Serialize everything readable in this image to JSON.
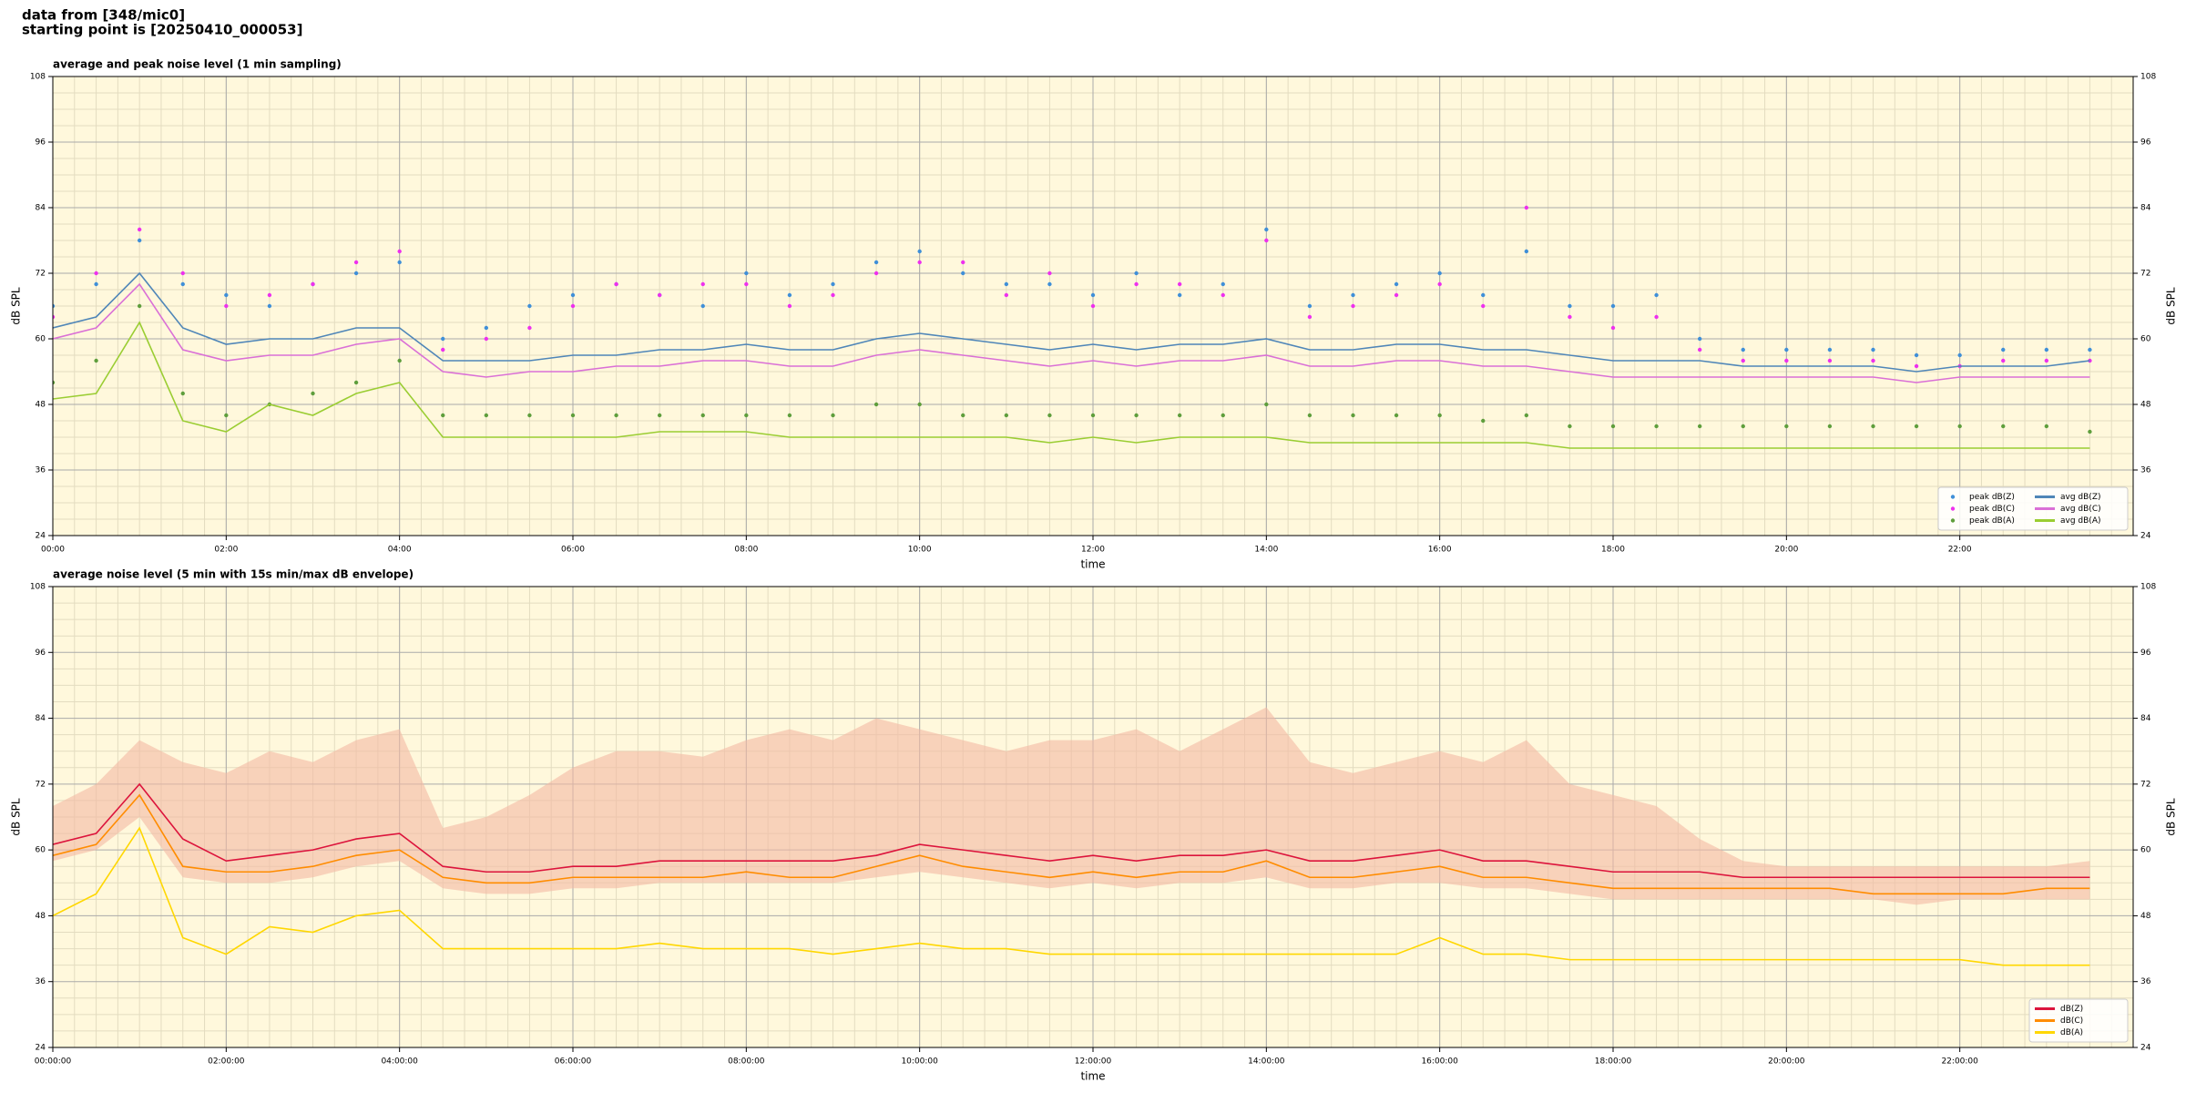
{
  "header": {
    "lines": [
      "data from [348/mic0]",
      "starting point is [20250410_000053]"
    ]
  },
  "chart_data": [
    {
      "type": "line",
      "title": "average and peak noise level (1 min sampling)",
      "xlabel": "time",
      "ylabel": "dB SPL",
      "xlim": [
        0,
        24
      ],
      "ylim": [
        24,
        108
      ],
      "yticks": [
        24,
        36,
        48,
        60,
        72,
        84,
        96,
        108
      ],
      "xticks": [
        {
          "value": 0,
          "label": "00:00"
        },
        {
          "value": 2,
          "label": "02:00"
        },
        {
          "value": 4,
          "label": "04:00"
        },
        {
          "value": 6,
          "label": "06:00"
        },
        {
          "value": 8,
          "label": "08:00"
        },
        {
          "value": 10,
          "label": "10:00"
        },
        {
          "value": 12,
          "label": "12:00"
        },
        {
          "value": 14,
          "label": "14:00"
        },
        {
          "value": 16,
          "label": "16:00"
        },
        {
          "value": 18,
          "label": "18:00"
        },
        {
          "value": 20,
          "label": "20:00"
        },
        {
          "value": 22,
          "label": "22:00"
        }
      ],
      "grid": true,
      "minor_grid": true,
      "background": "#fff8dc",
      "legend": "lower right",
      "legend_columns": 2,
      "x": [
        0,
        0.5,
        1,
        1.5,
        2,
        2.5,
        3,
        3.5,
        4,
        4.5,
        5,
        5.5,
        6,
        6.5,
        7,
        7.5,
        8,
        8.5,
        9,
        9.5,
        10,
        10.5,
        11,
        11.5,
        12,
        12.5,
        13,
        13.5,
        14,
        14.5,
        15,
        15.5,
        16,
        16.5,
        17,
        17.5,
        18,
        18.5,
        19,
        19.5,
        20,
        20.5,
        21,
        21.5,
        22,
        22.5,
        23,
        23.5
      ],
      "series": [
        {
          "name": "peak dB(Z)",
          "type": "scatter",
          "color": "#3f8fd8",
          "values": [
            66,
            70,
            78,
            70,
            68,
            66,
            70,
            72,
            74,
            60,
            62,
            66,
            68,
            70,
            68,
            66,
            72,
            68,
            70,
            74,
            76,
            72,
            70,
            70,
            68,
            72,
            68,
            70,
            80,
            66,
            68,
            70,
            72,
            68,
            76,
            66,
            66,
            68,
            60,
            58,
            58,
            58,
            58,
            57,
            57,
            58,
            58,
            58
          ]
        },
        {
          "name": "peak dB(C)",
          "type": "scatter",
          "color": "#ee30ee",
          "values": [
            64,
            72,
            80,
            72,
            66,
            68,
            70,
            74,
            76,
            58,
            60,
            62,
            66,
            70,
            68,
            70,
            70,
            66,
            68,
            72,
            74,
            74,
            68,
            72,
            66,
            70,
            70,
            68,
            78,
            64,
            66,
            68,
            70,
            66,
            84,
            64,
            62,
            64,
            58,
            56,
            56,
            56,
            56,
            55,
            55,
            56,
            56,
            56
          ]
        },
        {
          "name": "peak dB(A)",
          "type": "scatter",
          "color": "#5e9e3c",
          "values": [
            52,
            56,
            66,
            50,
            46,
            48,
            50,
            52,
            56,
            46,
            46,
            46,
            46,
            46,
            46,
            46,
            46,
            46,
            46,
            48,
            48,
            46,
            46,
            46,
            46,
            46,
            46,
            46,
            48,
            46,
            46,
            46,
            46,
            45,
            46,
            44,
            44,
            44,
            44,
            44,
            44,
            44,
            44,
            44,
            44,
            44,
            44,
            43
          ]
        },
        {
          "name": "avg dB(Z)",
          "type": "line",
          "color": "#4f86b8",
          "values": [
            62,
            64,
            72,
            62,
            59,
            60,
            60,
            62,
            62,
            56,
            56,
            56,
            57,
            57,
            58,
            58,
            59,
            58,
            58,
            60,
            61,
            60,
            59,
            58,
            59,
            58,
            59,
            59,
            60,
            58,
            58,
            59,
            59,
            58,
            58,
            57,
            56,
            56,
            56,
            55,
            55,
            55,
            55,
            54,
            55,
            55,
            55,
            56
          ]
        },
        {
          "name": "avg dB(C)",
          "type": "line",
          "color": "#da70d6",
          "values": [
            60,
            62,
            70,
            58,
            56,
            57,
            57,
            59,
            60,
            54,
            53,
            54,
            54,
            55,
            55,
            56,
            56,
            55,
            55,
            57,
            58,
            57,
            56,
            55,
            56,
            55,
            56,
            56,
            57,
            55,
            55,
            56,
            56,
            55,
            55,
            54,
            53,
            53,
            53,
            53,
            53,
            53,
            53,
            52,
            53,
            53,
            53,
            53
          ]
        },
        {
          "name": "avg dB(A)",
          "type": "line",
          "color": "#9acd32",
          "values": [
            49,
            50,
            63,
            45,
            43,
            48,
            46,
            50,
            52,
            42,
            42,
            42,
            42,
            42,
            43,
            43,
            43,
            42,
            42,
            42,
            42,
            42,
            42,
            41,
            42,
            41,
            42,
            42,
            42,
            41,
            41,
            41,
            41,
            41,
            41,
            40,
            40,
            40,
            40,
            40,
            40,
            40,
            40,
            40,
            40,
            40,
            40,
            40
          ]
        }
      ]
    },
    {
      "type": "line",
      "title": "average noise level (5 min with 15s min/max dB envelope)",
      "xlabel": "time",
      "ylabel": "dB SPL",
      "xlim": [
        0,
        24
      ],
      "ylim": [
        24,
        108
      ],
      "yticks": [
        24,
        36,
        48,
        60,
        72,
        84,
        96,
        108
      ],
      "xticks": [
        {
          "value": 0,
          "label": "00:00:00"
        },
        {
          "value": 2,
          "label": "02:00:00"
        },
        {
          "value": 4,
          "label": "04:00:00"
        },
        {
          "value": 6,
          "label": "06:00:00"
        },
        {
          "value": 8,
          "label": "08:00:00"
        },
        {
          "value": 10,
          "label": "10:00:00"
        },
        {
          "value": 12,
          "label": "12:00:00"
        },
        {
          "value": 14,
          "label": "14:00:00"
        },
        {
          "value": 16,
          "label": "16:00:00"
        },
        {
          "value": 18,
          "label": "18:00:00"
        },
        {
          "value": 20,
          "label": "20:00:00"
        },
        {
          "value": 22,
          "label": "22:00:00"
        }
      ],
      "grid": true,
      "minor_grid": true,
      "background": "#fff8dc",
      "legend": "lower right",
      "legend_columns": 1,
      "x": [
        0,
        0.5,
        1,
        1.5,
        2,
        2.5,
        3,
        3.5,
        4,
        4.5,
        5,
        5.5,
        6,
        6.5,
        7,
        7.5,
        8,
        8.5,
        9,
        9.5,
        10,
        10.5,
        11,
        11.5,
        12,
        12.5,
        13,
        13.5,
        14,
        14.5,
        15,
        15.5,
        16,
        16.5,
        17,
        17.5,
        18,
        18.5,
        19,
        19.5,
        20,
        20.5,
        21,
        21.5,
        22,
        22.5,
        23,
        23.5
      ],
      "envelope": {
        "color": "#f4b9a4",
        "max": [
          68,
          72,
          80,
          76,
          74,
          78,
          76,
          80,
          82,
          64,
          66,
          70,
          75,
          78,
          78,
          77,
          80,
          82,
          80,
          84,
          82,
          80,
          78,
          80,
          80,
          82,
          78,
          82,
          86,
          76,
          74,
          76,
          78,
          76,
          80,
          72,
          70,
          68,
          62,
          58,
          57,
          57,
          57,
          57,
          57,
          57,
          57,
          58
        ],
        "min": [
          58,
          60,
          66,
          55,
          54,
          54,
          55,
          57,
          58,
          53,
          52,
          52,
          53,
          53,
          54,
          54,
          54,
          54,
          54,
          55,
          56,
          55,
          54,
          53,
          54,
          53,
          54,
          54,
          55,
          53,
          53,
          54,
          54,
          53,
          53,
          52,
          51,
          51,
          51,
          51,
          51,
          51,
          51,
          50,
          51,
          51,
          51,
          51
        ]
      },
      "series": [
        {
          "name": "dB(Z)",
          "type": "line",
          "color": "#dc143c",
          "values": [
            61,
            63,
            72,
            62,
            58,
            59,
            60,
            62,
            63,
            57,
            56,
            56,
            57,
            57,
            58,
            58,
            58,
            58,
            58,
            59,
            61,
            60,
            59,
            58,
            59,
            58,
            59,
            59,
            60,
            58,
            58,
            59,
            60,
            58,
            58,
            57,
            56,
            56,
            56,
            55,
            55,
            55,
            55,
            55,
            55,
            55,
            55,
            55
          ]
        },
        {
          "name": "dB(C)",
          "type": "line",
          "color": "#ff8c00",
          "values": [
            59,
            61,
            70,
            57,
            56,
            56,
            57,
            59,
            60,
            55,
            54,
            54,
            55,
            55,
            55,
            55,
            56,
            55,
            55,
            57,
            59,
            57,
            56,
            55,
            56,
            55,
            56,
            56,
            58,
            55,
            55,
            56,
            57,
            55,
            55,
            54,
            53,
            53,
            53,
            53,
            53,
            53,
            52,
            52,
            52,
            52,
            53,
            53
          ]
        },
        {
          "name": "dB(A)",
          "type": "line",
          "color": "#ffd700",
          "values": [
            48,
            52,
            64,
            44,
            41,
            46,
            45,
            48,
            49,
            42,
            42,
            42,
            42,
            42,
            43,
            42,
            42,
            42,
            41,
            42,
            43,
            42,
            42,
            41,
            41,
            41,
            41,
            41,
            41,
            41,
            41,
            41,
            44,
            41,
            41,
            40,
            40,
            40,
            40,
            40,
            40,
            40,
            40,
            40,
            40,
            39,
            39,
            39
          ]
        }
      ]
    }
  ]
}
